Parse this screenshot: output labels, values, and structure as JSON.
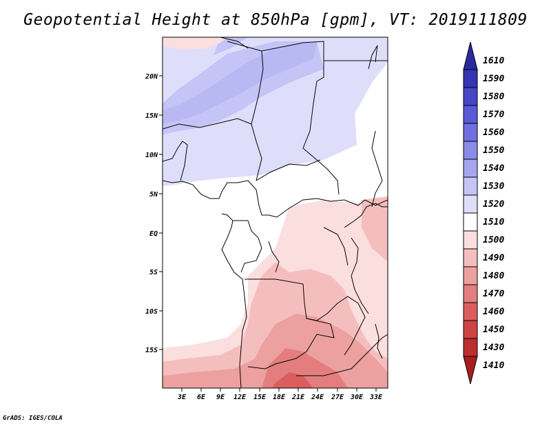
{
  "title": "Geopotential Height at 850hPa [gpm], VT: 2019111809",
  "credit": "GrADS: IGES/COLA",
  "map": {
    "lat_labels": [
      "20N",
      "15N",
      "10N",
      "5N",
      "EQ",
      "5S",
      "10S",
      "15S"
    ],
    "lon_labels": [
      "3E",
      "6E",
      "9E",
      "12E",
      "15E",
      "18E",
      "21E",
      "24E",
      "27E",
      "30E",
      "33E"
    ]
  },
  "colorbar": {
    "labels": [
      "1610",
      "1590",
      "1580",
      "1570",
      "1560",
      "1550",
      "1540",
      "1530",
      "1520",
      "1510",
      "1500",
      "1490",
      "1480",
      "1470",
      "1460",
      "1450",
      "1430",
      "1410"
    ],
    "colors": [
      "#2a2a9e",
      "#3535b4",
      "#4646c6",
      "#5a5ad6",
      "#7070e0",
      "#8a8ae8",
      "#a6a6f0",
      "#c4c4f6",
      "#dedefb",
      "#ffffff",
      "#fbdede",
      "#f5bebe",
      "#eda0a0",
      "#e47e7e",
      "#da5e5e",
      "#ce4444",
      "#bd2e2e",
      "#a81e1e"
    ]
  }
}
